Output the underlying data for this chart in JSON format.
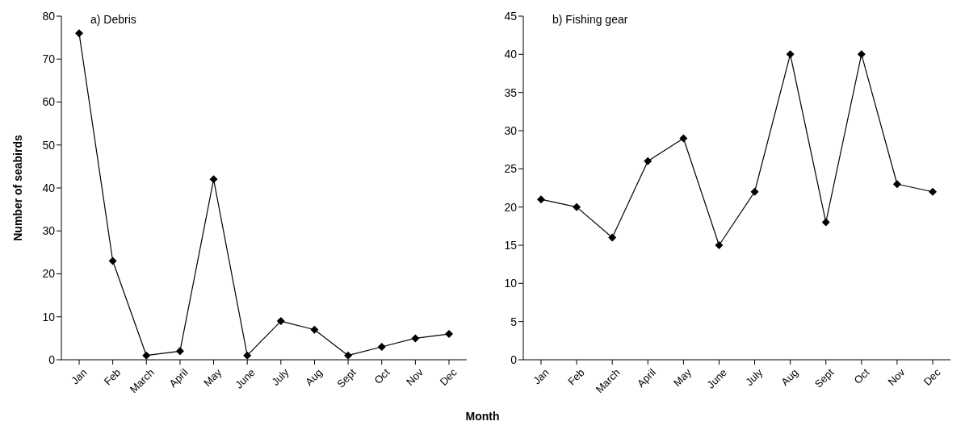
{
  "chart_data": [
    {
      "type": "line",
      "title": "a) Debris",
      "ylabel": "Number of seabirds",
      "xlabel": "Month",
      "categories": [
        "Jan",
        "Feb",
        "March",
        "April",
        "May",
        "June",
        "July",
        "Aug",
        "Sept",
        "Oct",
        "Nov",
        "Dec"
      ],
      "series": [
        {
          "color": "#000000",
          "values": [
            76,
            23,
            1,
            2,
            42,
            1,
            9,
            7,
            1,
            3,
            5,
            6
          ]
        }
      ],
      "ylim": [
        0,
        80
      ],
      "yticks": [
        0,
        10,
        20,
        30,
        40,
        50,
        60,
        70,
        80
      ],
      "marker": "diamond"
    },
    {
      "type": "line",
      "title": "b) Fishing gear",
      "categories": [
        "Jan",
        "Feb",
        "March",
        "April",
        "May",
        "June",
        "July",
        "Aug",
        "Sept",
        "Oct",
        "Nov",
        "Dec"
      ],
      "series": [
        {
          "color": "#000000",
          "values": [
            21,
            20,
            16,
            26,
            29,
            15,
            22,
            40,
            18,
            40,
            23,
            22
          ]
        }
      ],
      "ylim": [
        0,
        45
      ],
      "yticks": [
        0,
        5,
        10,
        15,
        20,
        25,
        30,
        35,
        40,
        45
      ],
      "marker": "diamond"
    }
  ]
}
